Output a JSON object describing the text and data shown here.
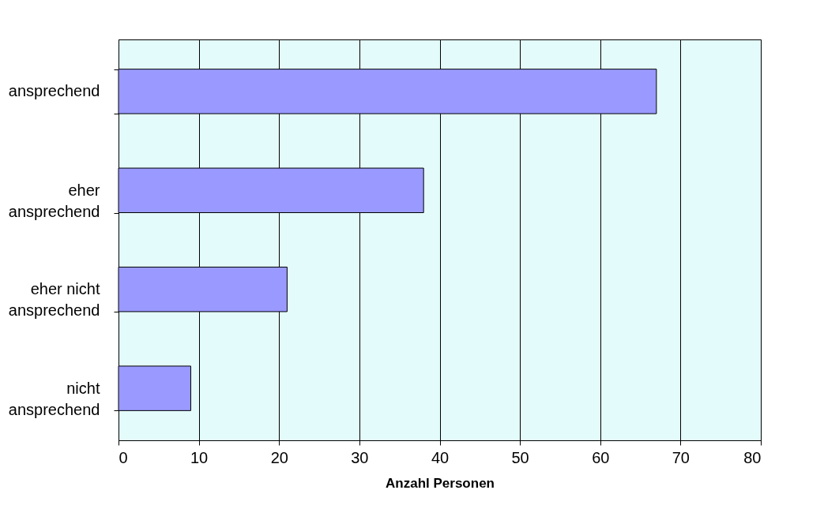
{
  "chart_data": {
    "type": "bar",
    "orientation": "horizontal",
    "xlabel": "Anzahl Personen",
    "categories": [
      "ansprechend",
      "eher ansprechend",
      "eher nicht ansprechend",
      "nicht ansprechend"
    ],
    "values": [
      67,
      38,
      21,
      9
    ],
    "color": "#9999ff",
    "xlim": [
      0,
      80
    ],
    "xticks": [
      0,
      10,
      20,
      30,
      40,
      50,
      60,
      70,
      80
    ],
    "grid": "x"
  }
}
